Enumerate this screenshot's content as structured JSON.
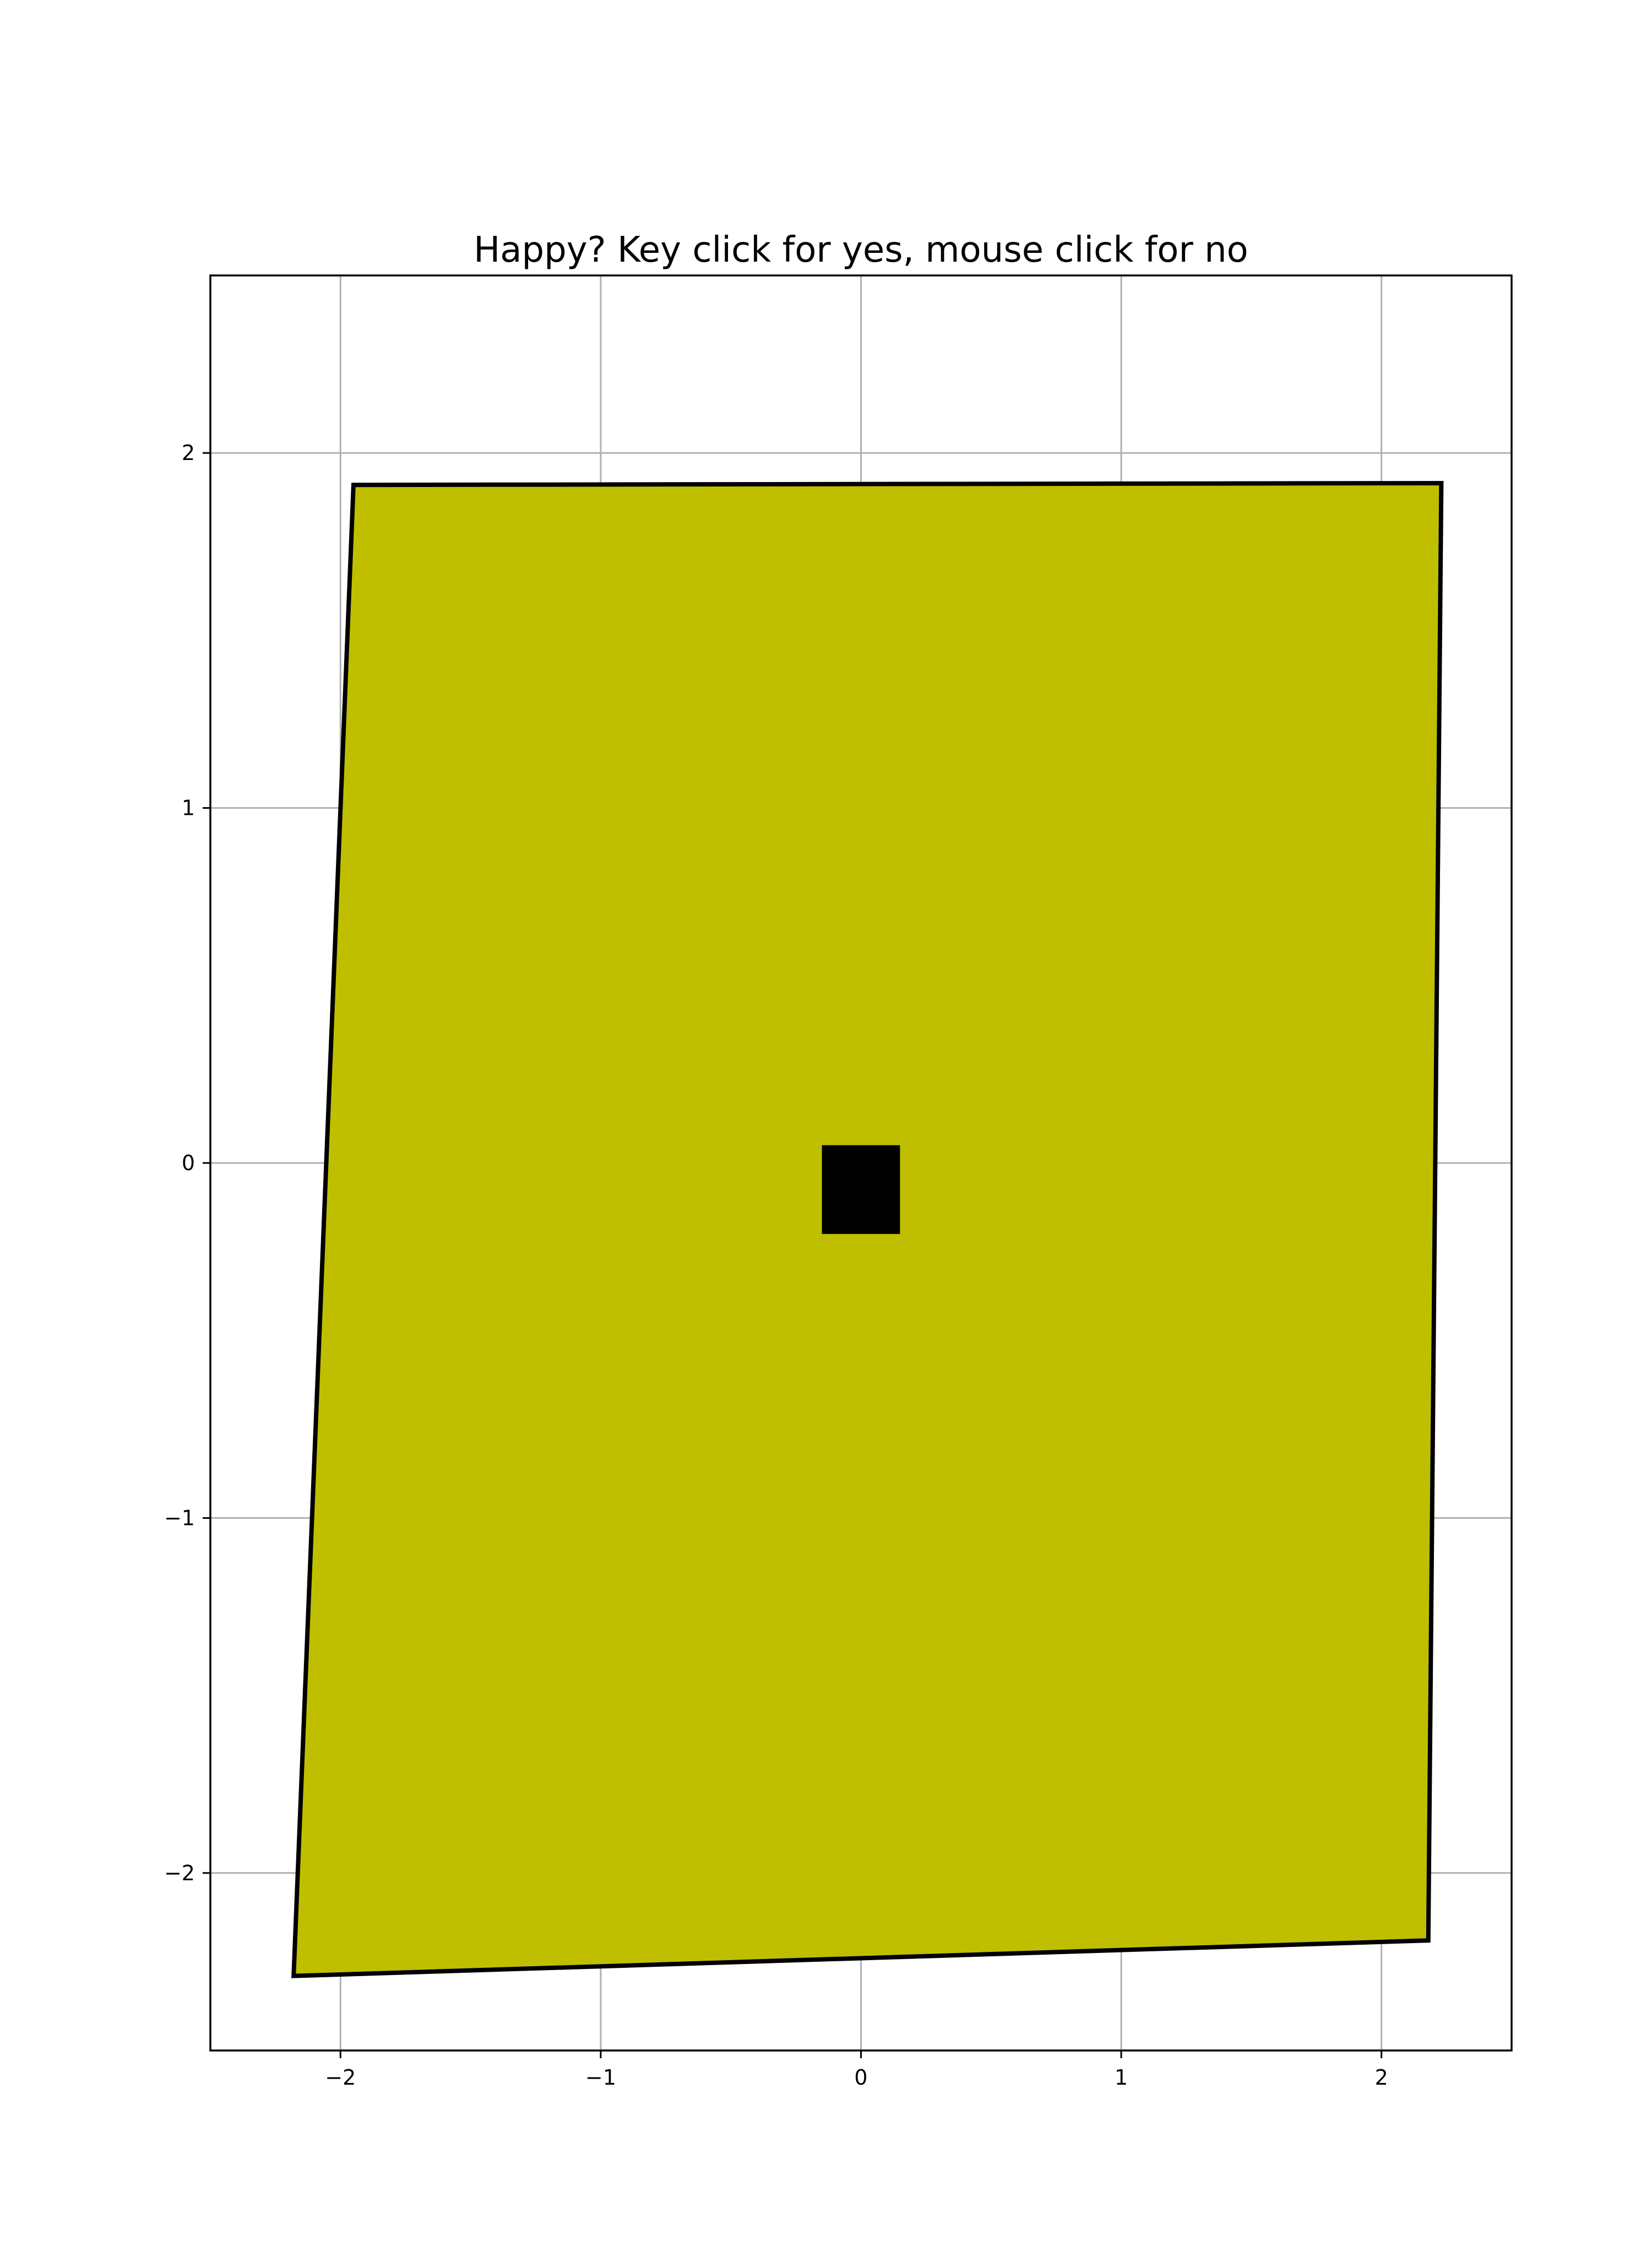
{
  "chart_data": {
    "type": "scatter",
    "title": "Happy? Key click for yes, mouse click for no",
    "xlabel": "",
    "ylabel": "",
    "xlim": [
      -2.5,
      2.5
    ],
    "ylim": [
      -2.5,
      2.5
    ],
    "grid": true,
    "xticks": [
      -2,
      -1,
      0,
      1,
      2
    ],
    "yticks": [
      -2,
      -1,
      0,
      1,
      2
    ],
    "xtick_labels": [
      "−2",
      "−1",
      "0",
      "1",
      "2"
    ],
    "ytick_labels": [
      "−2",
      "−1",
      "0",
      "1",
      "2"
    ],
    "shapes": [
      {
        "name": "face",
        "kind": "polygon",
        "fill": "#bfbf00",
        "stroke": "#000000",
        "points": [
          [
            -1.95,
            1.91
          ],
          [
            2.23,
            1.915
          ],
          [
            2.18,
            -2.19
          ],
          [
            -2.18,
            -2.29
          ]
        ]
      },
      {
        "name": "nose",
        "kind": "polygon",
        "fill": "#000000",
        "stroke": "none",
        "points": [
          [
            -0.15,
            0.05
          ],
          [
            0.15,
            0.05
          ],
          [
            0.15,
            -0.2
          ],
          [
            -0.15,
            -0.2
          ]
        ]
      }
    ]
  },
  "colors": {
    "grid": "#b0b0b0",
    "axes": "#000000",
    "background": "#ffffff"
  }
}
